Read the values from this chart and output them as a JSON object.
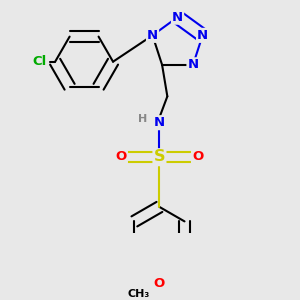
{
  "background_color": "#e8e8e8",
  "atom_colors": {
    "N": "#0000ee",
    "O": "#ff0000",
    "S": "#cccc00",
    "Cl": "#00aa00",
    "C": "#000000",
    "H": "#888888"
  },
  "bond_width": 1.5,
  "font_size": 9.5,
  "fig_width": 3.0,
  "fig_height": 3.0,
  "dpi": 100
}
